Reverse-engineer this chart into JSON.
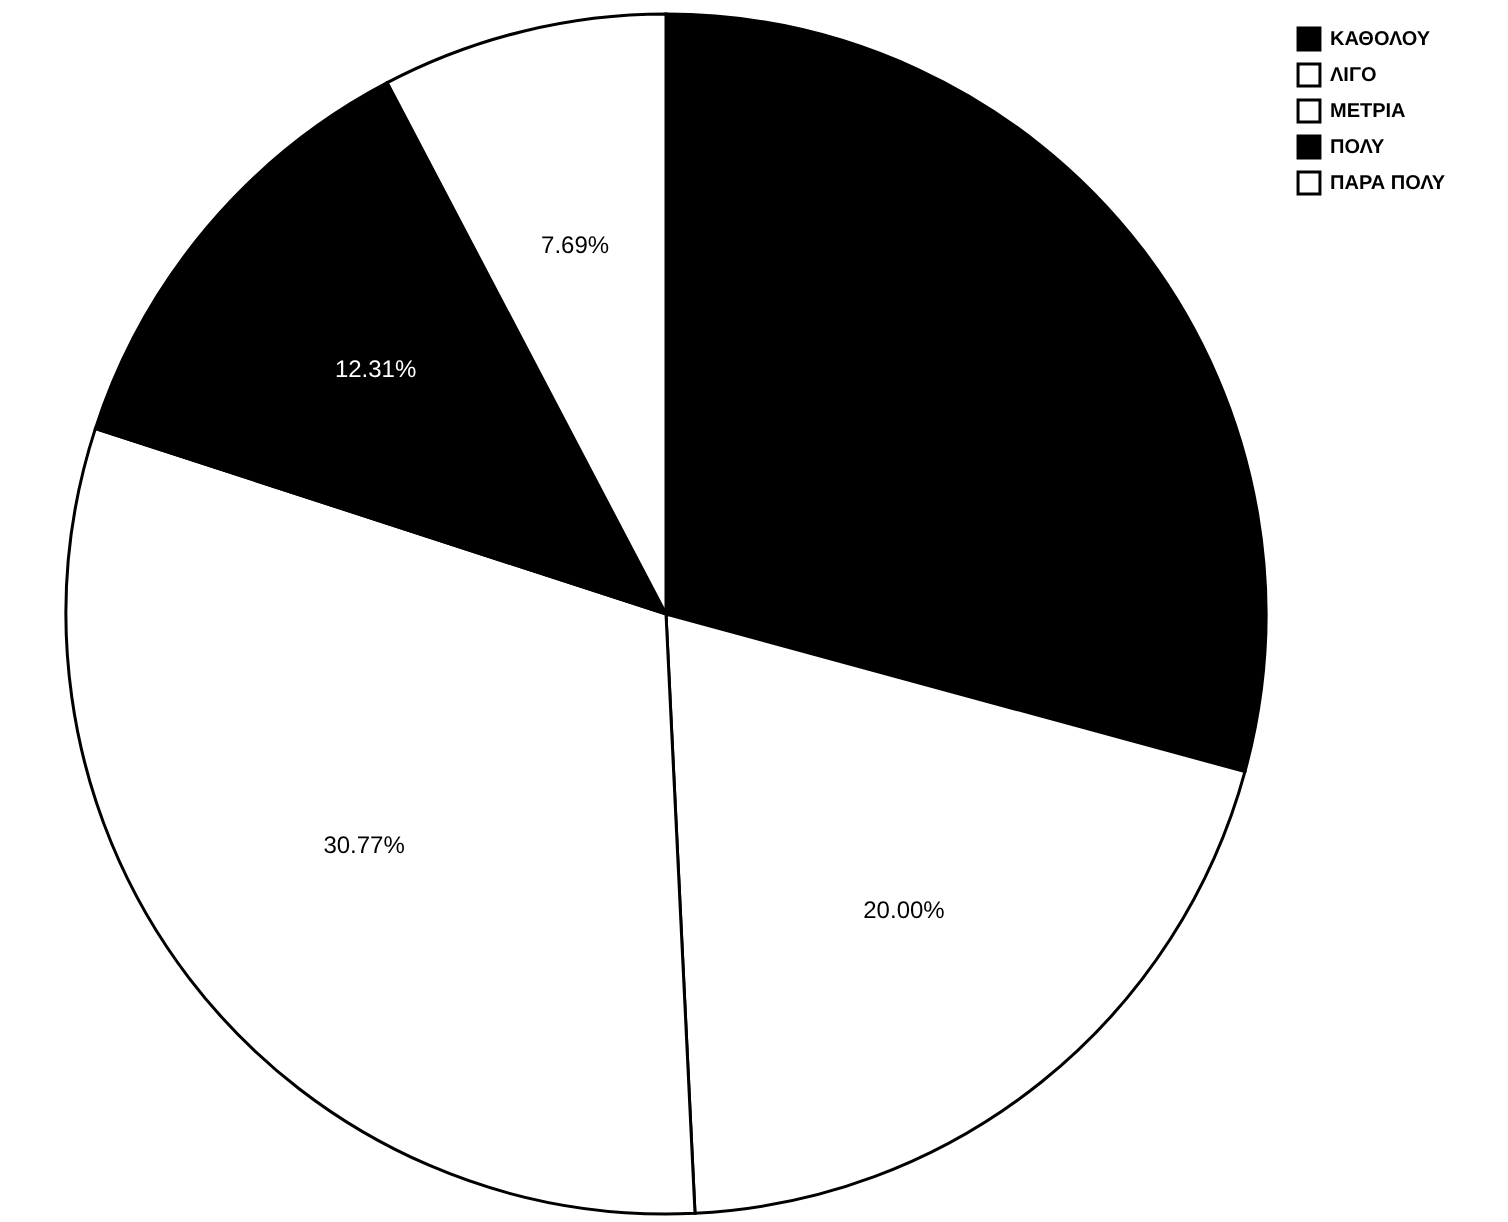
{
  "chart_data": {
    "type": "pie",
    "categories": [
      "ΚΑΘΟΛΟΥ",
      "ΛΙΓΟ",
      "ΜΕΤΡΙΑ",
      "ΠΟΛΥ",
      "ΠΑΡΑ ΠΟΛΥ"
    ],
    "values": [
      29.23,
      20.0,
      30.77,
      12.31,
      7.69
    ],
    "colors": [
      "#000000",
      "#ffffff",
      "#ffffff",
      "#000000",
      "#ffffff"
    ],
    "value_labels": [
      null,
      "20.00%",
      "30.77%",
      "12.31%",
      "7.69%"
    ],
    "legend": "top right"
  }
}
